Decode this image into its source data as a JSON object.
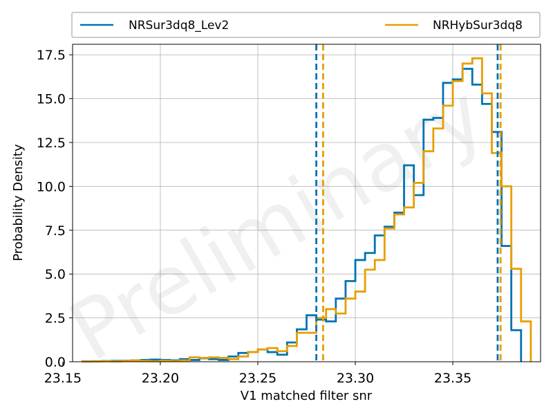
{
  "chart_data": {
    "type": "histogram",
    "title": "",
    "xlabel": "V1 matched filter snr",
    "ylabel": "Probability Density",
    "xlim": [
      23.155,
      23.395
    ],
    "ylim": [
      0,
      18.1
    ],
    "xticks": [
      23.15,
      23.2,
      23.25,
      23.3,
      23.35
    ],
    "xtick_labels": [
      "23.15",
      "23.20",
      "23.25",
      "23.30",
      "23.35"
    ],
    "yticks": [
      0,
      2.5,
      5,
      7.5,
      10,
      12.5,
      15,
      17.5
    ],
    "ytick_labels": [
      "0.0",
      "2.5",
      "5.0",
      "7.5",
      "10.0",
      "12.5",
      "15.0",
      "17.5"
    ],
    "grid": true,
    "legend_position": "top",
    "watermark": "Preliminary",
    "series": [
      {
        "name": "NRSur3dq8_Lev2",
        "color": "#0072b2",
        "edges": [
          23.16,
          23.165,
          23.17,
          23.175,
          23.18,
          23.185,
          23.19,
          23.195,
          23.2,
          23.205,
          23.21,
          23.215,
          23.22,
          23.225,
          23.23,
          23.235,
          23.24,
          23.245,
          23.25,
          23.255,
          23.26,
          23.265,
          23.27,
          23.275,
          23.28,
          23.285,
          23.29,
          23.295,
          23.3,
          23.305,
          23.31,
          23.315,
          23.32,
          23.325,
          23.33,
          23.335,
          23.34,
          23.345,
          23.35,
          23.355,
          23.36,
          23.365,
          23.37,
          23.375,
          23.38
        ],
        "densities": [
          0.02,
          0.03,
          0.04,
          0.05,
          0.06,
          0.08,
          0.1,
          0.12,
          0.1,
          0.08,
          0.15,
          0.1,
          0.2,
          0.15,
          0.1,
          0.3,
          0.5,
          0.55,
          0.7,
          0.55,
          0.4,
          1.1,
          1.85,
          2.65,
          2.4,
          2.3,
          3.6,
          4.6,
          5.8,
          6.2,
          7.2,
          7.7,
          8.5,
          11.2,
          9.5,
          13.8,
          13.9,
          15.9,
          16.1,
          16.7,
          15.8,
          14.7,
          13.1,
          6.6,
          1.8
        ]
      },
      {
        "name": "NRHybSur3dq8",
        "color": "#e69f00",
        "edges": [
          23.16,
          23.165,
          23.17,
          23.175,
          23.18,
          23.185,
          23.19,
          23.195,
          23.2,
          23.205,
          23.21,
          23.215,
          23.22,
          23.225,
          23.23,
          23.235,
          23.24,
          23.245,
          23.25,
          23.255,
          23.26,
          23.265,
          23.27,
          23.275,
          23.28,
          23.285,
          23.29,
          23.295,
          23.3,
          23.305,
          23.31,
          23.315,
          23.32,
          23.325,
          23.33,
          23.335,
          23.34,
          23.345,
          23.35,
          23.355,
          23.36,
          23.365,
          23.37,
          23.375,
          23.38,
          23.385
        ],
        "densities": [
          0.01,
          0.02,
          0.03,
          0.02,
          0.05,
          0.08,
          0.05,
          0.03,
          0.06,
          0.04,
          0.08,
          0.25,
          0.22,
          0.25,
          0.22,
          0.15,
          0.3,
          0.55,
          0.7,
          0.78,
          0.6,
          0.9,
          1.65,
          1.65,
          2.5,
          3.0,
          2.75,
          3.6,
          4.0,
          5.25,
          5.8,
          7.6,
          8.4,
          8.8,
          10.2,
          12.0,
          13.3,
          14.6,
          16.0,
          17.0,
          17.3,
          15.3,
          11.9,
          10.0,
          5.3,
          2.3
        ]
      }
    ],
    "vertical_lines": [
      {
        "series": "NRSur3dq8_Lev2",
        "x": 23.28,
        "color": "#0072b2",
        "style": "dashed"
      },
      {
        "series": "NRHybSur3dq8",
        "x": 23.2835,
        "color": "#e69f00",
        "style": "dashed"
      },
      {
        "series": "NRSur3dq8_Lev2",
        "x": 23.373,
        "color": "#0072b2",
        "style": "dashed"
      },
      {
        "series": "NRHybSur3dq8",
        "x": 23.3745,
        "color": "#e69f00",
        "style": "dashed"
      }
    ]
  }
}
